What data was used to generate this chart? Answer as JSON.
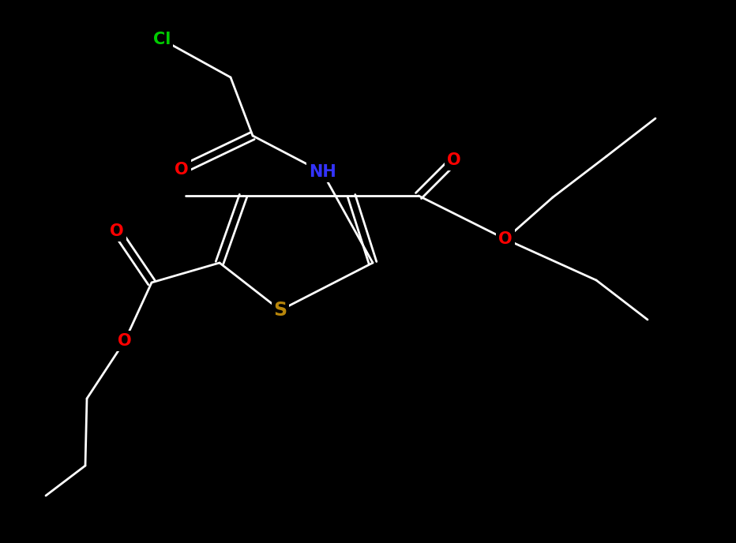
{
  "bg_color": "#000000",
  "bond_color": "#ffffff",
  "atom_colors": {
    "S": "#b8860b",
    "O": "#ff0000",
    "N": "#3333ff",
    "Cl": "#00cc00",
    "C": "#ffffff"
  },
  "figsize": [
    9.32,
    6.88
  ],
  "dpi": 100,
  "lw": 2.0,
  "dbl_off": 5.0
}
